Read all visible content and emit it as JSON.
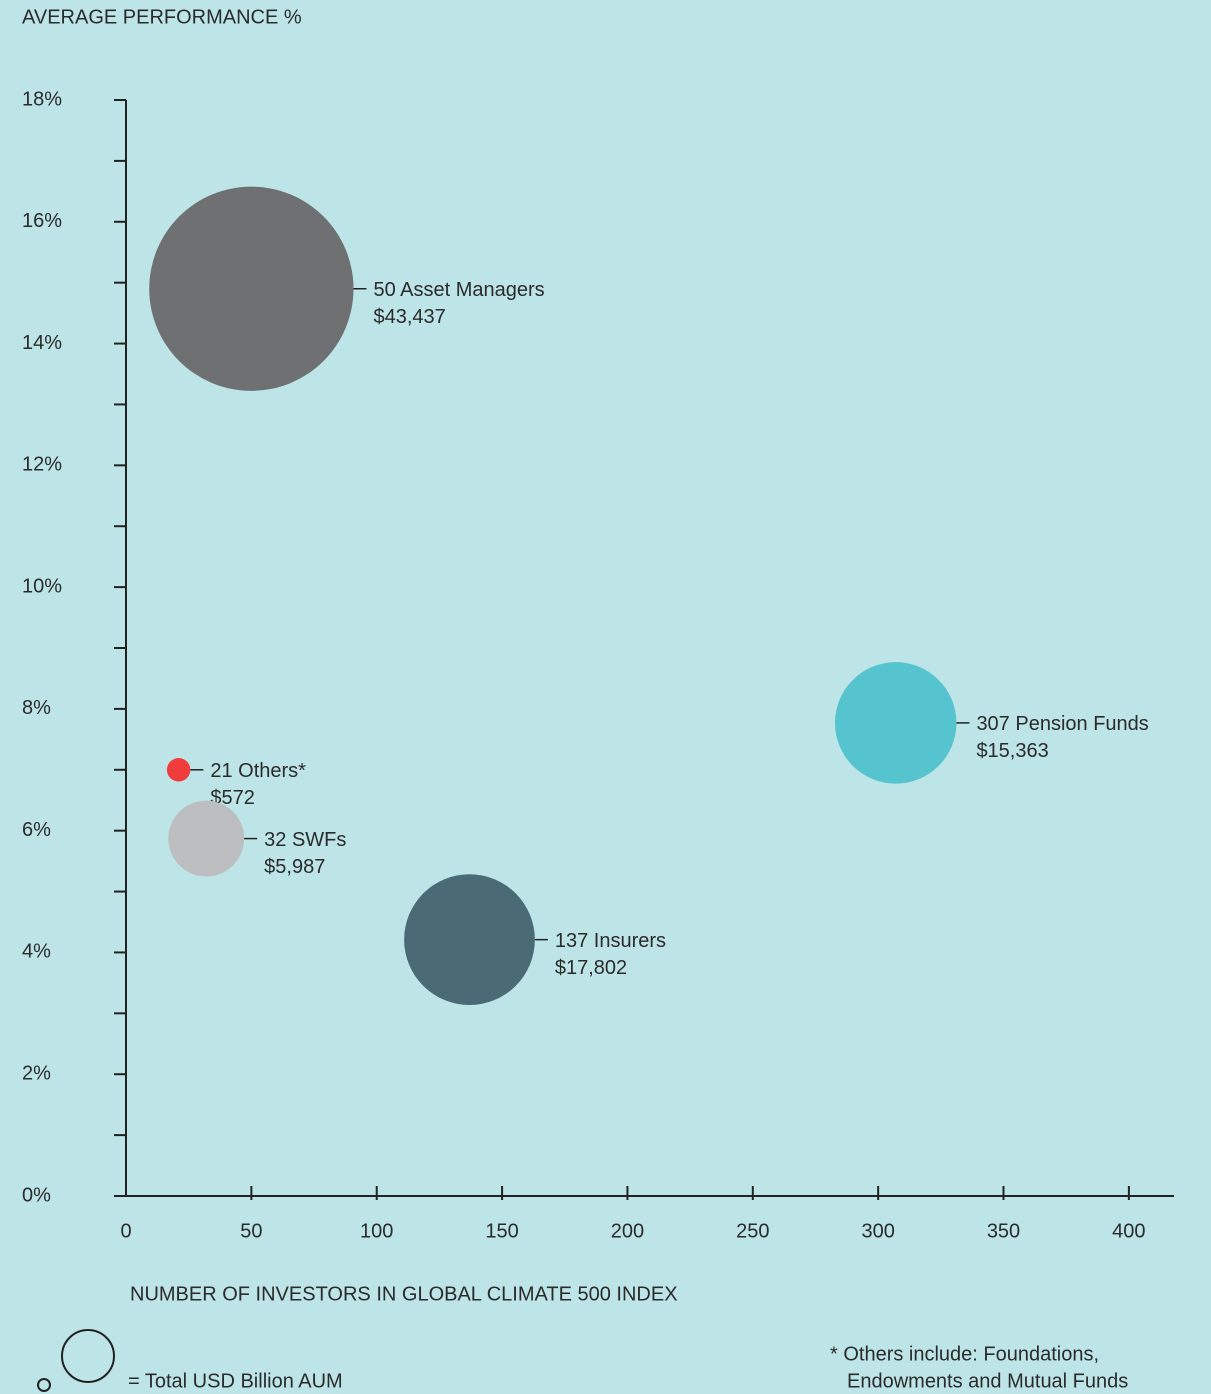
{
  "chart_data": {
    "type": "bubble",
    "ylabel": "AVERAGE PERFORMANCE %",
    "xlabel": "NUMBER OF INVESTORS IN GLOBAL CLIMATE 500 INDEX",
    "xlim": [
      0,
      418
    ],
    "xticks": [
      0,
      50,
      100,
      150,
      200,
      250,
      300,
      350,
      400
    ],
    "ylim": [
      0,
      18
    ],
    "yticks": [
      {
        "value": 0,
        "label": "0%"
      },
      {
        "value": 2,
        "label": "2%"
      },
      {
        "value": 4,
        "label": "4%"
      },
      {
        "value": 6,
        "label": "6%"
      },
      {
        "value": 8,
        "label": "8%"
      },
      {
        "value": 10,
        "label": "10%"
      },
      {
        "value": 12,
        "label": "12%"
      },
      {
        "value": 14,
        "label": "14%"
      },
      {
        "value": 16,
        "label": "16%"
      },
      {
        "value": 18,
        "label": "18%"
      }
    ],
    "yminorticks": [
      1,
      3,
      5,
      7,
      9,
      11,
      13,
      15,
      17
    ],
    "series": [
      {
        "name": "50 Asset Managers",
        "color": "#6f7072",
        "x": 50,
        "y": 14.9,
        "size": 43437,
        "size_label": "$43,437"
      },
      {
        "name": "307 Pension Funds",
        "color": "#56c4cf",
        "x": 307,
        "y": 7.77,
        "size": 15363,
        "size_label": "$15,363"
      },
      {
        "name": "21 Others*",
        "color": "#f03c3c",
        "x": 21,
        "y": 7.0,
        "size": 572,
        "size_label": "$572"
      },
      {
        "name": "32 SWFs",
        "color": "#bcbec0",
        "x": 32,
        "y": 5.87,
        "size": 5987,
        "size_label": "$5,987"
      },
      {
        "name": "137 Insurers",
        "color": "#4a6a75",
        "x": 137,
        "y": 4.21,
        "size": 17802,
        "size_label": "$17,802"
      }
    ],
    "legend_text": "= Total USD Billion AUM",
    "footnote": [
      "* Others include: Foundations,",
      "Endowments and Mutual Funds"
    ]
  }
}
